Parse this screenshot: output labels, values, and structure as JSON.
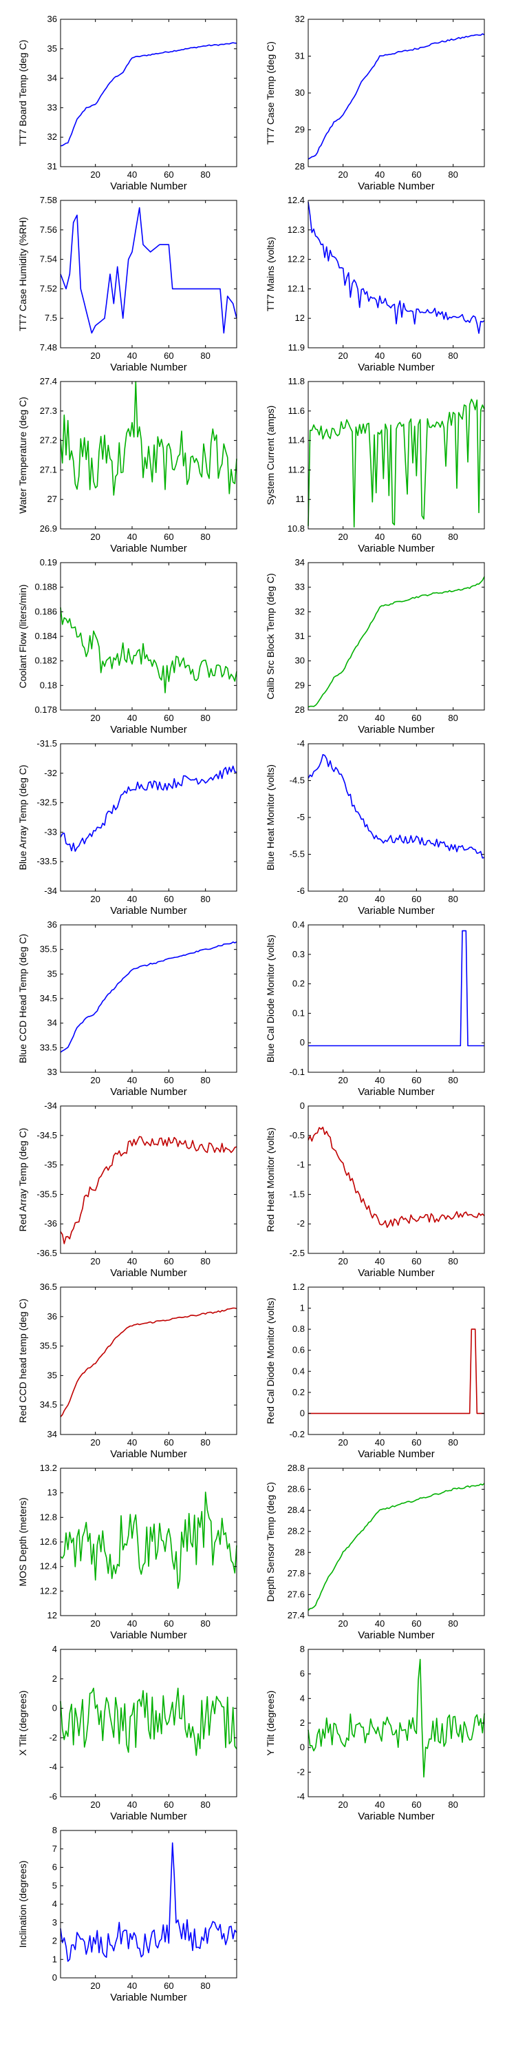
{
  "chart_data": [
    {
      "type": "line",
      "xlabel": "Variable Number",
      "ylabel": "TT7 Board Temp (deg C)",
      "xlim": [
        1,
        97
      ],
      "ylim": [
        31,
        36
      ],
      "xticks": [
        "20",
        "40",
        "60",
        "80"
      ],
      "yticks": [
        "31",
        "32",
        "33",
        "34",
        "35",
        "36"
      ],
      "color": "#0000ff",
      "shape": "boardtemp",
      "x": [
        1,
        5,
        10,
        15,
        20,
        25,
        30,
        35,
        40,
        50,
        60,
        70,
        80,
        90,
        97
      ],
      "y": [
        31.7,
        31.8,
        32.6,
        33.0,
        33.1,
        33.6,
        34.0,
        34.2,
        34.7,
        34.8,
        34.9,
        35.0,
        35.1,
        35.15,
        35.2
      ]
    },
    {
      "type": "line",
      "xlabel": "Variable Number",
      "ylabel": "TT7 Case Temp (deg C)",
      "xlim": [
        1,
        97
      ],
      "ylim": [
        28,
        32
      ],
      "xticks": [
        "20",
        "40",
        "60",
        "80"
      ],
      "yticks": [
        "28",
        "29",
        "30",
        "31",
        "32"
      ],
      "color": "#0000ff",
      "shape": "ramp",
      "x": [
        1,
        5,
        10,
        15,
        20,
        25,
        30,
        35,
        40,
        50,
        60,
        70,
        80,
        90,
        97
      ],
      "y": [
        28.2,
        28.3,
        28.8,
        29.2,
        29.4,
        29.8,
        30.3,
        30.6,
        31.0,
        31.1,
        31.2,
        31.35,
        31.45,
        31.55,
        31.6
      ]
    },
    {
      "type": "line",
      "xlabel": "Variable Number",
      "ylabel": "TT7 Case Humidity (%RH)",
      "xlim": [
        1,
        97
      ],
      "ylim": [
        7.48,
        7.58
      ],
      "xticks": [
        "20",
        "40",
        "60",
        "80"
      ],
      "yticks": [
        "7.48",
        "7.5",
        "7.52",
        "7.54",
        "7.56",
        "7.58"
      ],
      "color": "#0000ff",
      "shape": "humidity",
      "x": [
        1,
        4,
        6,
        8,
        10,
        12,
        14,
        16,
        18,
        20,
        25,
        28,
        30,
        32,
        35,
        38,
        40,
        42,
        44,
        46,
        50,
        55,
        60,
        62,
        65,
        70,
        80,
        88,
        90,
        92,
        95,
        97
      ],
      "y": [
        7.53,
        7.52,
        7.53,
        7.565,
        7.57,
        7.52,
        7.51,
        7.5,
        7.49,
        7.495,
        7.5,
        7.53,
        7.51,
        7.535,
        7.5,
        7.54,
        7.545,
        7.56,
        7.575,
        7.55,
        7.545,
        7.55,
        7.55,
        7.52,
        7.52,
        7.52,
        7.52,
        7.52,
        7.49,
        7.515,
        7.51,
        7.5
      ]
    },
    {
      "type": "line",
      "xlabel": "Variable Number",
      "ylabel": "TT7 Mains  (volts)",
      "xlim": [
        1,
        97
      ],
      "ylim": [
        11.9,
        12.4
      ],
      "xticks": [
        "20",
        "40",
        "60",
        "80"
      ],
      "yticks": [
        "11.9",
        "12",
        "12.1",
        "12.2",
        "12.3",
        "12.4"
      ],
      "color": "#0000ff",
      "shape": "mains",
      "x": [
        1,
        3,
        5,
        8,
        10,
        15,
        20,
        25,
        30,
        35,
        40,
        45,
        50,
        55,
        60,
        65,
        70,
        75,
        80,
        85,
        90,
        97
      ],
      "y": [
        12.38,
        12.3,
        12.28,
        12.25,
        12.24,
        12.2,
        12.17,
        12.12,
        12.1,
        12.08,
        12.07,
        12.05,
        12.05,
        12.03,
        12.02,
        12.02,
        12.02,
        12.01,
        12.01,
        12.0,
        12.0,
        11.99
      ]
    },
    {
      "type": "line",
      "xlabel": "Variable Number",
      "ylabel": "Water Temperature (deg C)",
      "xlim": [
        1,
        97
      ],
      "ylim": [
        26.9,
        27.4
      ],
      "xticks": [
        "20",
        "40",
        "60",
        "80"
      ],
      "yticks": [
        "26.9",
        "27",
        "27.1",
        "27.2",
        "27.3",
        "27.4"
      ],
      "color": "#00b000",
      "shape": "noisy",
      "x": [
        1,
        5,
        10,
        15,
        20,
        25,
        30,
        35,
        40,
        42,
        45,
        50,
        55,
        60,
        65,
        70,
        75,
        80,
        85,
        90,
        97
      ],
      "y": [
        27.2,
        27.25,
        27.1,
        27.15,
        27.05,
        27.2,
        27.1,
        27.15,
        27.2,
        27.35,
        27.15,
        27.1,
        27.15,
        27.1,
        27.2,
        27.1,
        27.15,
        27.1,
        27.2,
        27.1,
        27.05
      ]
    },
    {
      "type": "line",
      "xlabel": "Variable Number",
      "ylabel": "System Current (amps)",
      "xlim": [
        1,
        97
      ],
      "ylim": [
        10.8,
        11.8
      ],
      "xticks": [
        "20",
        "40",
        "60",
        "80"
      ],
      "yticks": [
        "10.8",
        "11",
        "11.2",
        "11.4",
        "11.6",
        "11.8"
      ],
      "color": "#00b000",
      "shape": "current",
      "x": [
        1,
        10,
        20,
        30,
        40,
        50,
        60,
        70,
        80,
        90,
        97
      ],
      "y": [
        11.45,
        11.45,
        11.5,
        11.45,
        11.5,
        11.5,
        11.5,
        11.5,
        11.55,
        11.65,
        11.6
      ]
    },
    {
      "type": "line",
      "xlabel": "Variable Number",
      "ylabel": "Coolant Flow (liters/min)",
      "xlim": [
        1,
        97
      ],
      "ylim": [
        0.178,
        0.19
      ],
      "xticks": [
        "20",
        "40",
        "60",
        "80"
      ],
      "yticks": [
        "0.178",
        "0.18",
        "0.182",
        "0.184",
        "0.186",
        "0.188",
        "0.19"
      ],
      "color": "#00b000",
      "shape": "coolant",
      "x": [
        1,
        5,
        10,
        15,
        20,
        25,
        30,
        35,
        40,
        45,
        50,
        55,
        60,
        65,
        70,
        75,
        80,
        85,
        90,
        97
      ],
      "y": [
        0.186,
        0.185,
        0.184,
        0.183,
        0.184,
        0.182,
        0.182,
        0.183,
        0.182,
        0.183,
        0.182,
        0.181,
        0.181,
        0.182,
        0.182,
        0.181,
        0.182,
        0.181,
        0.181,
        0.181
      ]
    },
    {
      "type": "line",
      "xlabel": "Variable Number",
      "ylabel": "Calib Src Block Temp (deg C)",
      "xlim": [
        1,
        97
      ],
      "ylim": [
        28,
        34
      ],
      "xticks": [
        "20",
        "40",
        "60",
        "80"
      ],
      "yticks": [
        "28",
        "29",
        "30",
        "31",
        "32",
        "33",
        "34"
      ],
      "color": "#00b000",
      "shape": "ramp",
      "x": [
        1,
        5,
        10,
        15,
        20,
        25,
        30,
        35,
        40,
        50,
        60,
        70,
        80,
        90,
        95,
        97
      ],
      "y": [
        28.1,
        28.2,
        28.7,
        29.3,
        29.6,
        30.3,
        30.9,
        31.5,
        32.2,
        32.4,
        32.6,
        32.75,
        32.85,
        33.0,
        33.2,
        33.4
      ]
    },
    {
      "type": "line",
      "xlabel": "Variable Number",
      "ylabel": "Blue Array Temp (deg C)",
      "xlim": [
        1,
        97
      ],
      "ylim": [
        -34,
        -31.5
      ],
      "xticks": [
        "20",
        "40",
        "60",
        "80"
      ],
      "yticks": [
        "-34",
        "-33.5",
        "-33",
        "-32.5",
        "-32",
        "-31.5"
      ],
      "color": "#0000ff",
      "shape": "arraytemp",
      "x": [
        1,
        5,
        10,
        15,
        20,
        25,
        30,
        35,
        40,
        50,
        60,
        70,
        80,
        90,
        97
      ],
      "y": [
        -33.0,
        -33.2,
        -33.3,
        -33.1,
        -33.0,
        -32.8,
        -32.6,
        -32.4,
        -32.2,
        -32.2,
        -32.2,
        -32.1,
        -32.1,
        -32.0,
        -31.9
      ]
    },
    {
      "type": "line",
      "xlabel": "Variable Number",
      "ylabel": "Blue Heat Monitor (volts)",
      "xlim": [
        1,
        97
      ],
      "ylim": [
        -6,
        -4
      ],
      "xticks": [
        "20",
        "40",
        "60",
        "80"
      ],
      "yticks": [
        "-6",
        "-5.5",
        "-5",
        "-4.5",
        "-4"
      ],
      "color": "#0000ff",
      "shape": "heatmon",
      "x": [
        1,
        5,
        8,
        10,
        15,
        20,
        25,
        30,
        35,
        40,
        45,
        50,
        60,
        70,
        80,
        90,
        97
      ],
      "y": [
        -4.5,
        -4.4,
        -4.2,
        -4.2,
        -4.35,
        -4.5,
        -4.8,
        -5.0,
        -5.2,
        -5.3,
        -5.3,
        -5.3,
        -5.3,
        -5.35,
        -5.4,
        -5.45,
        -5.5
      ]
    },
    {
      "type": "line",
      "xlabel": "Variable Number",
      "ylabel": "Blue CCD Head Temp (deg C)",
      "xlim": [
        1,
        97
      ],
      "ylim": [
        33,
        36
      ],
      "xticks": [
        "20",
        "40",
        "60",
        "80"
      ],
      "yticks": [
        "33",
        "33.5",
        "34",
        "34.5",
        "35",
        "35.5",
        "36"
      ],
      "color": "#0000ff",
      "shape": "ramp",
      "x": [
        1,
        5,
        10,
        15,
        20,
        25,
        30,
        35,
        40,
        50,
        60,
        70,
        80,
        90,
        97
      ],
      "y": [
        33.4,
        33.5,
        33.9,
        34.1,
        34.2,
        34.5,
        34.7,
        34.9,
        35.1,
        35.2,
        35.3,
        35.4,
        35.5,
        35.6,
        35.65
      ]
    },
    {
      "type": "line",
      "xlabel": "Variable Number",
      "ylabel": "Blue Cal Diode Monitor (volts)",
      "xlim": [
        1,
        97
      ],
      "ylim": [
        -0.1,
        0.4
      ],
      "xticks": [
        "20",
        "40",
        "60",
        "80"
      ],
      "yticks": [
        "-0.1",
        "0",
        "0.1",
        "0.2",
        "0.3",
        "0.4"
      ],
      "color": "#0000ff",
      "shape": "spike",
      "x": [
        1,
        84,
        85,
        86,
        87,
        88,
        89,
        97
      ],
      "y": [
        -0.01,
        -0.01,
        0.38,
        0.38,
        0.38,
        -0.01,
        -0.01,
        -0.01
      ]
    },
    {
      "type": "line",
      "xlabel": "Variable Number",
      "ylabel": "Red Array Temp (deg C)",
      "xlim": [
        1,
        97
      ],
      "ylim": [
        -36.5,
        -34
      ],
      "xticks": [
        "20",
        "40",
        "60",
        "80"
      ],
      "yticks": [
        "-36.5",
        "-36",
        "-35.5",
        "-35",
        "-34.5",
        "-34"
      ],
      "color": "#c00000",
      "shape": "arraytemp",
      "x": [
        1,
        5,
        10,
        15,
        20,
        25,
        30,
        35,
        40,
        50,
        60,
        70,
        80,
        90,
        97
      ],
      "y": [
        -36.2,
        -36.3,
        -36.0,
        -35.5,
        -35.4,
        -35.1,
        -34.9,
        -34.8,
        -34.6,
        -34.6,
        -34.6,
        -34.65,
        -34.7,
        -34.7,
        -34.75
      ]
    },
    {
      "type": "line",
      "xlabel": "Variable Number",
      "ylabel": "Red Heat Monitor (volts)",
      "xlim": [
        1,
        97
      ],
      "ylim": [
        -2.5,
        0
      ],
      "xticks": [
        "20",
        "40",
        "60",
        "80"
      ],
      "yticks": [
        "-2.5",
        "-2",
        "-1.5",
        "-1",
        "-0.5",
        "0"
      ],
      "color": "#c00000",
      "shape": "heatmon",
      "x": [
        1,
        5,
        8,
        10,
        15,
        20,
        25,
        30,
        35,
        40,
        45,
        50,
        60,
        70,
        80,
        90,
        97
      ],
      "y": [
        -0.6,
        -0.5,
        -0.4,
        -0.45,
        -0.7,
        -1.0,
        -1.3,
        -1.6,
        -1.8,
        -1.95,
        -2.0,
        -1.95,
        -1.9,
        -1.9,
        -1.85,
        -1.85,
        -1.8
      ]
    },
    {
      "type": "line",
      "xlabel": "Variable Number",
      "ylabel": "Red CCD head temp (deg C)",
      "xlim": [
        1,
        97
      ],
      "ylim": [
        34,
        36.5
      ],
      "xticks": [
        "20",
        "40",
        "60",
        "80"
      ],
      "yticks": [
        "34",
        "34.5",
        "35",
        "35.5",
        "36",
        "36.5"
      ],
      "color": "#c00000",
      "shape": "ramp",
      "x": [
        1,
        5,
        10,
        15,
        20,
        25,
        30,
        35,
        40,
        50,
        60,
        70,
        80,
        90,
        97
      ],
      "y": [
        34.3,
        34.5,
        34.9,
        35.1,
        35.2,
        35.4,
        35.6,
        35.75,
        35.85,
        35.9,
        35.95,
        36.0,
        36.05,
        36.1,
        36.15
      ]
    },
    {
      "type": "line",
      "xlabel": "Variable Number",
      "ylabel": "Red Cal Diode Monitor (volts)",
      "xlim": [
        1,
        97
      ],
      "ylim": [
        -0.2,
        1.2
      ],
      "xticks": [
        "20",
        "40",
        "60",
        "80"
      ],
      "yticks": [
        "-0.2",
        "0",
        "0.2",
        "0.4",
        "0.6",
        "0.8",
        "1",
        "1.2"
      ],
      "color": "#c00000",
      "shape": "spike",
      "x": [
        1,
        89,
        90,
        91,
        92,
        93,
        94,
        97
      ],
      "y": [
        0,
        0,
        0.8,
        0.8,
        0.8,
        0,
        0,
        0
      ]
    },
    {
      "type": "line",
      "xlabel": "Variable Number",
      "ylabel": "MOS Depth  (meters)",
      "xlim": [
        1,
        97
      ],
      "ylim": [
        12,
        13.2
      ],
      "xticks": [
        "20",
        "40",
        "60",
        "80"
      ],
      "yticks": [
        "12",
        "12.2",
        "12.4",
        "12.6",
        "12.8",
        "13",
        "13.2"
      ],
      "color": "#00b000",
      "shape": "noisy",
      "x": [
        1,
        5,
        10,
        15,
        20,
        25,
        30,
        35,
        40,
        45,
        50,
        55,
        60,
        65,
        70,
        75,
        80,
        85,
        90,
        97
      ],
      "y": [
        12.4,
        12.6,
        12.5,
        12.7,
        12.5,
        12.6,
        12.4,
        12.7,
        12.8,
        12.5,
        12.6,
        12.7,
        12.5,
        12.4,
        12.7,
        12.6,
        12.8,
        12.5,
        12.6,
        12.5
      ]
    },
    {
      "type": "line",
      "xlabel": "Variable Number",
      "ylabel": "Depth Sensor Temp (deg C)",
      "xlim": [
        1,
        97
      ],
      "ylim": [
        27.4,
        28.8
      ],
      "xticks": [
        "20",
        "40",
        "60",
        "80"
      ],
      "yticks": [
        "27.4",
        "27.6",
        "27.8",
        "28",
        "28.2",
        "28.4",
        "28.6",
        "28.8"
      ],
      "color": "#00b000",
      "shape": "ramp",
      "x": [
        1,
        5,
        10,
        15,
        20,
        25,
        30,
        35,
        40,
        50,
        60,
        70,
        80,
        90,
        97
      ],
      "y": [
        27.45,
        27.5,
        27.7,
        27.85,
        28.0,
        28.1,
        28.2,
        28.3,
        28.4,
        28.45,
        28.5,
        28.55,
        28.6,
        28.63,
        28.65
      ]
    },
    {
      "type": "line",
      "xlabel": "Variable Number",
      "ylabel": "X Tilt  (degrees)",
      "xlim": [
        1,
        97
      ],
      "ylim": [
        -6,
        4
      ],
      "xticks": [
        "20",
        "40",
        "60",
        "80"
      ],
      "yticks": [
        "-6",
        "-4",
        "-2",
        "0",
        "2",
        "4"
      ],
      "color": "#00b000",
      "shape": "noisy",
      "x": [
        1,
        5,
        10,
        15,
        20,
        25,
        30,
        35,
        40,
        45,
        50,
        55,
        60,
        65,
        70,
        75,
        80,
        85,
        90,
        97
      ],
      "y": [
        -1,
        -0.5,
        -1.5,
        -1,
        0,
        -1,
        -0.5,
        -1,
        -1.5,
        0,
        -1,
        -0.5,
        -1,
        0,
        -1,
        -1.5,
        -0.5,
        0,
        -1,
        -1
      ]
    },
    {
      "type": "line",
      "xlabel": "Variable Number",
      "ylabel": "Y Tilt  (degrees)",
      "xlim": [
        1,
        97
      ],
      "ylim": [
        -4,
        8
      ],
      "xticks": [
        "20",
        "40",
        "60",
        "80"
      ],
      "yticks": [
        "-4",
        "-2",
        "0",
        "2",
        "4",
        "6",
        "8"
      ],
      "color": "#00b000",
      "shape": "ytilt",
      "x": [
        1,
        5,
        10,
        15,
        20,
        25,
        30,
        35,
        40,
        45,
        50,
        55,
        60,
        62,
        64,
        66,
        70,
        75,
        80,
        85,
        90,
        97
      ],
      "y": [
        1,
        0.5,
        1.5,
        1,
        0.5,
        2,
        1,
        1.5,
        0.5,
        2,
        1,
        1.5,
        2,
        7,
        -3,
        1,
        1.5,
        1,
        2,
        1,
        1.5,
        2
      ]
    },
    {
      "type": "line",
      "xlabel": "Variable Number",
      "ylabel": "Inclination  (degrees)",
      "xlim": [
        1,
        97
      ],
      "ylim": [
        0,
        8
      ],
      "xticks": [
        "20",
        "40",
        "60",
        "80"
      ],
      "yticks": [
        "0",
        "1",
        "2",
        "3",
        "4",
        "5",
        "6",
        "7",
        "8"
      ],
      "color": "#0000ff",
      "shape": "inclination",
      "x": [
        1,
        5,
        10,
        15,
        20,
        25,
        30,
        35,
        40,
        45,
        50,
        55,
        60,
        62,
        64,
        66,
        70,
        75,
        80,
        85,
        90,
        97
      ],
      "y": [
        2,
        1.5,
        2,
        1.5,
        2,
        1.5,
        2,
        2.5,
        2,
        1.5,
        2,
        2,
        2.5,
        7.2,
        3,
        2,
        2.5,
        2,
        2,
        2.5,
        2,
        2.5
      ]
    }
  ]
}
